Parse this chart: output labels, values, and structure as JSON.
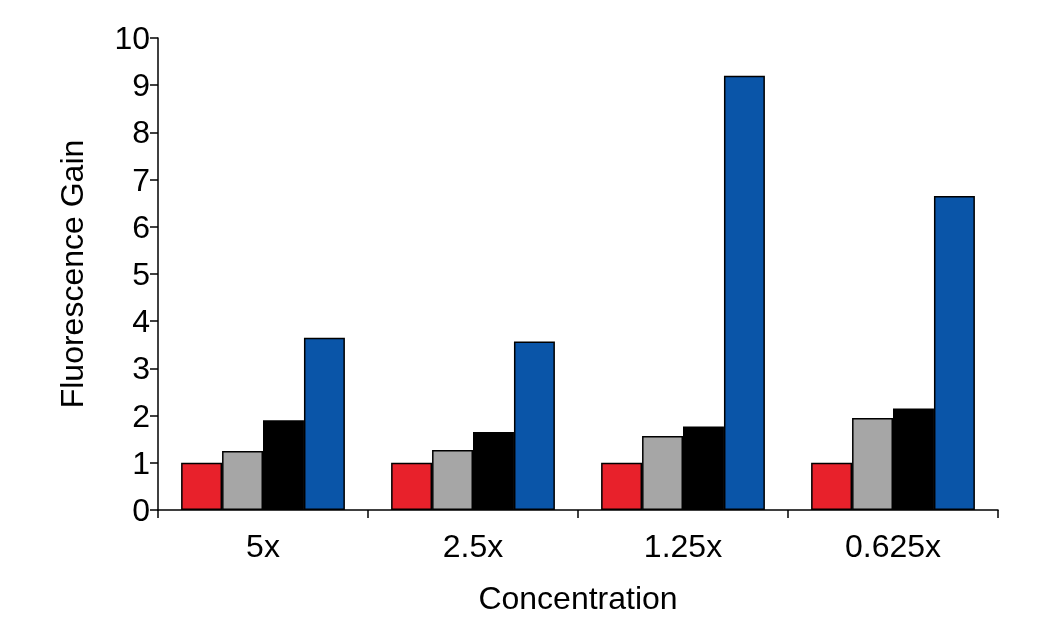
{
  "chart_data": {
    "type": "bar",
    "categories": [
      "5x",
      "2.5x",
      "1.25x",
      "0.625x"
    ],
    "series": [
      {
        "color": "#e8212b",
        "values": [
          1,
          1,
          1,
          1
        ]
      },
      {
        "color": "#a6a6a6",
        "values": [
          1.25,
          1.27,
          1.57,
          1.95
        ]
      },
      {
        "color": "#000000",
        "values": [
          1.9,
          1.65,
          1.77,
          2.15
        ]
      },
      {
        "color": "#0a55a8",
        "values": [
          3.65,
          3.57,
          9.2,
          6.65
        ]
      }
    ],
    "xlabel": "Concentration",
    "ylabel": "Fluorescence Gain",
    "ylim": [
      0,
      10
    ],
    "yticks": [
      0,
      1,
      2,
      3,
      4,
      5,
      6,
      7,
      8,
      9,
      10
    ],
    "grid": false
  }
}
